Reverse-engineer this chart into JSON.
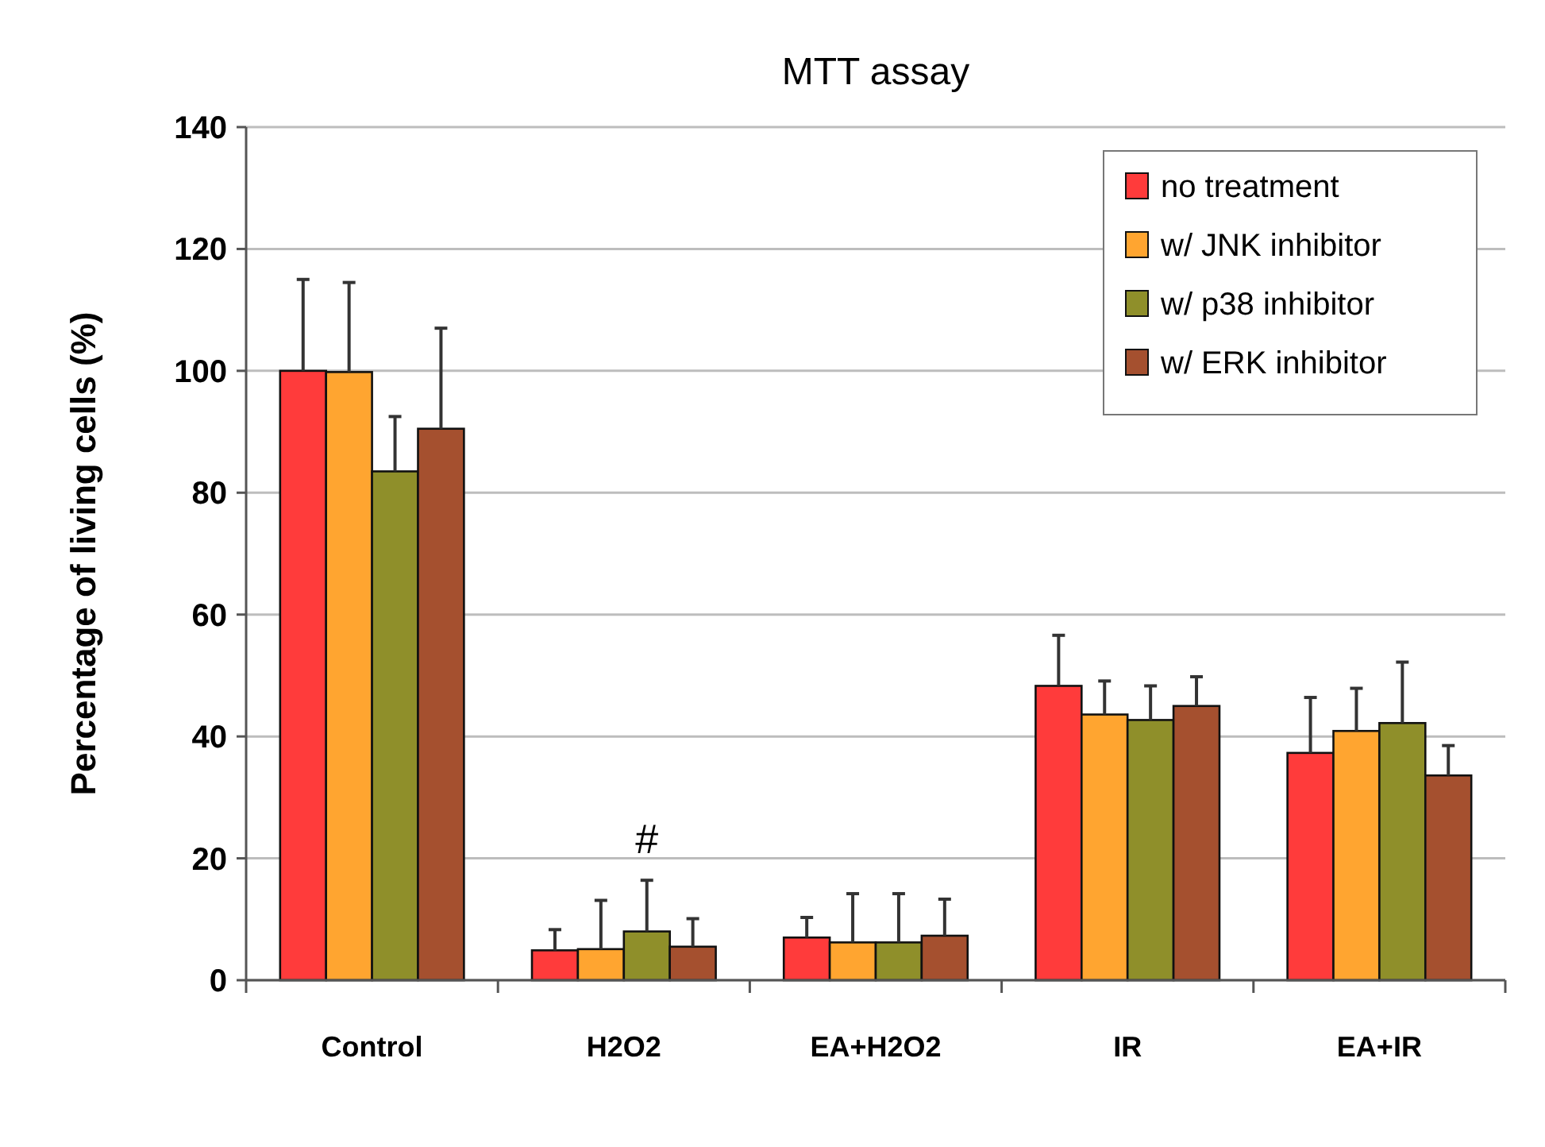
{
  "chart_data": {
    "type": "bar",
    "title": "MTT assay",
    "ylabel": "Percentage of living cells (%)",
    "categories": [
      "Control",
      "H2O2",
      "EA+H2O2",
      "IR",
      "EA+IR"
    ],
    "series": [
      {
        "name": "no treatment",
        "color": "#ff3b3b",
        "values": [
          100,
          4.9,
          7.0,
          48.3,
          37.3
        ],
        "errors": [
          [
            100,
            115
          ],
          [
            4.9,
            8.3
          ],
          [
            7.0,
            10.3
          ],
          [
            48.3,
            56.6
          ],
          [
            37.3,
            46.4
          ]
        ]
      },
      {
        "name": "w/ JNK inhibitor",
        "color": "#ffa530",
        "values": [
          99.8,
          5.1,
          6.2,
          43.6,
          40.9
        ],
        "errors": [
          [
            99.8,
            114.5
          ],
          [
            5.1,
            13.1
          ],
          [
            6.2,
            14.2
          ],
          [
            43.6,
            49.1
          ],
          [
            40.9,
            47.9
          ]
        ]
      },
      {
        "name": "w/ p38 inhibitor",
        "color": "#8f8f2a",
        "values": [
          83.5,
          8.0,
          6.2,
          42.7,
          42.2
        ],
        "errors": [
          [
            83.5,
            92.5
          ],
          [
            8.0,
            16.4
          ],
          [
            6.2,
            14.2
          ],
          [
            42.7,
            48.3
          ],
          [
            42.2,
            52.2
          ]
        ]
      },
      {
        "name": "w/ ERK inhibitor",
        "color": "#a5502f",
        "values": [
          90.5,
          5.5,
          7.3,
          45.0,
          33.6
        ],
        "errors": [
          [
            90.5,
            107
          ],
          [
            5.5,
            10.1
          ],
          [
            7.3,
            13.3
          ],
          [
            45.0,
            49.8
          ],
          [
            33.6,
            38.5
          ]
        ]
      }
    ],
    "ylim": [
      0,
      140
    ],
    "yticks": [
      0,
      20,
      40,
      60,
      80,
      100,
      120,
      140
    ],
    "grid": "y",
    "legend": "top right",
    "annotations": [
      "#"
    ]
  }
}
